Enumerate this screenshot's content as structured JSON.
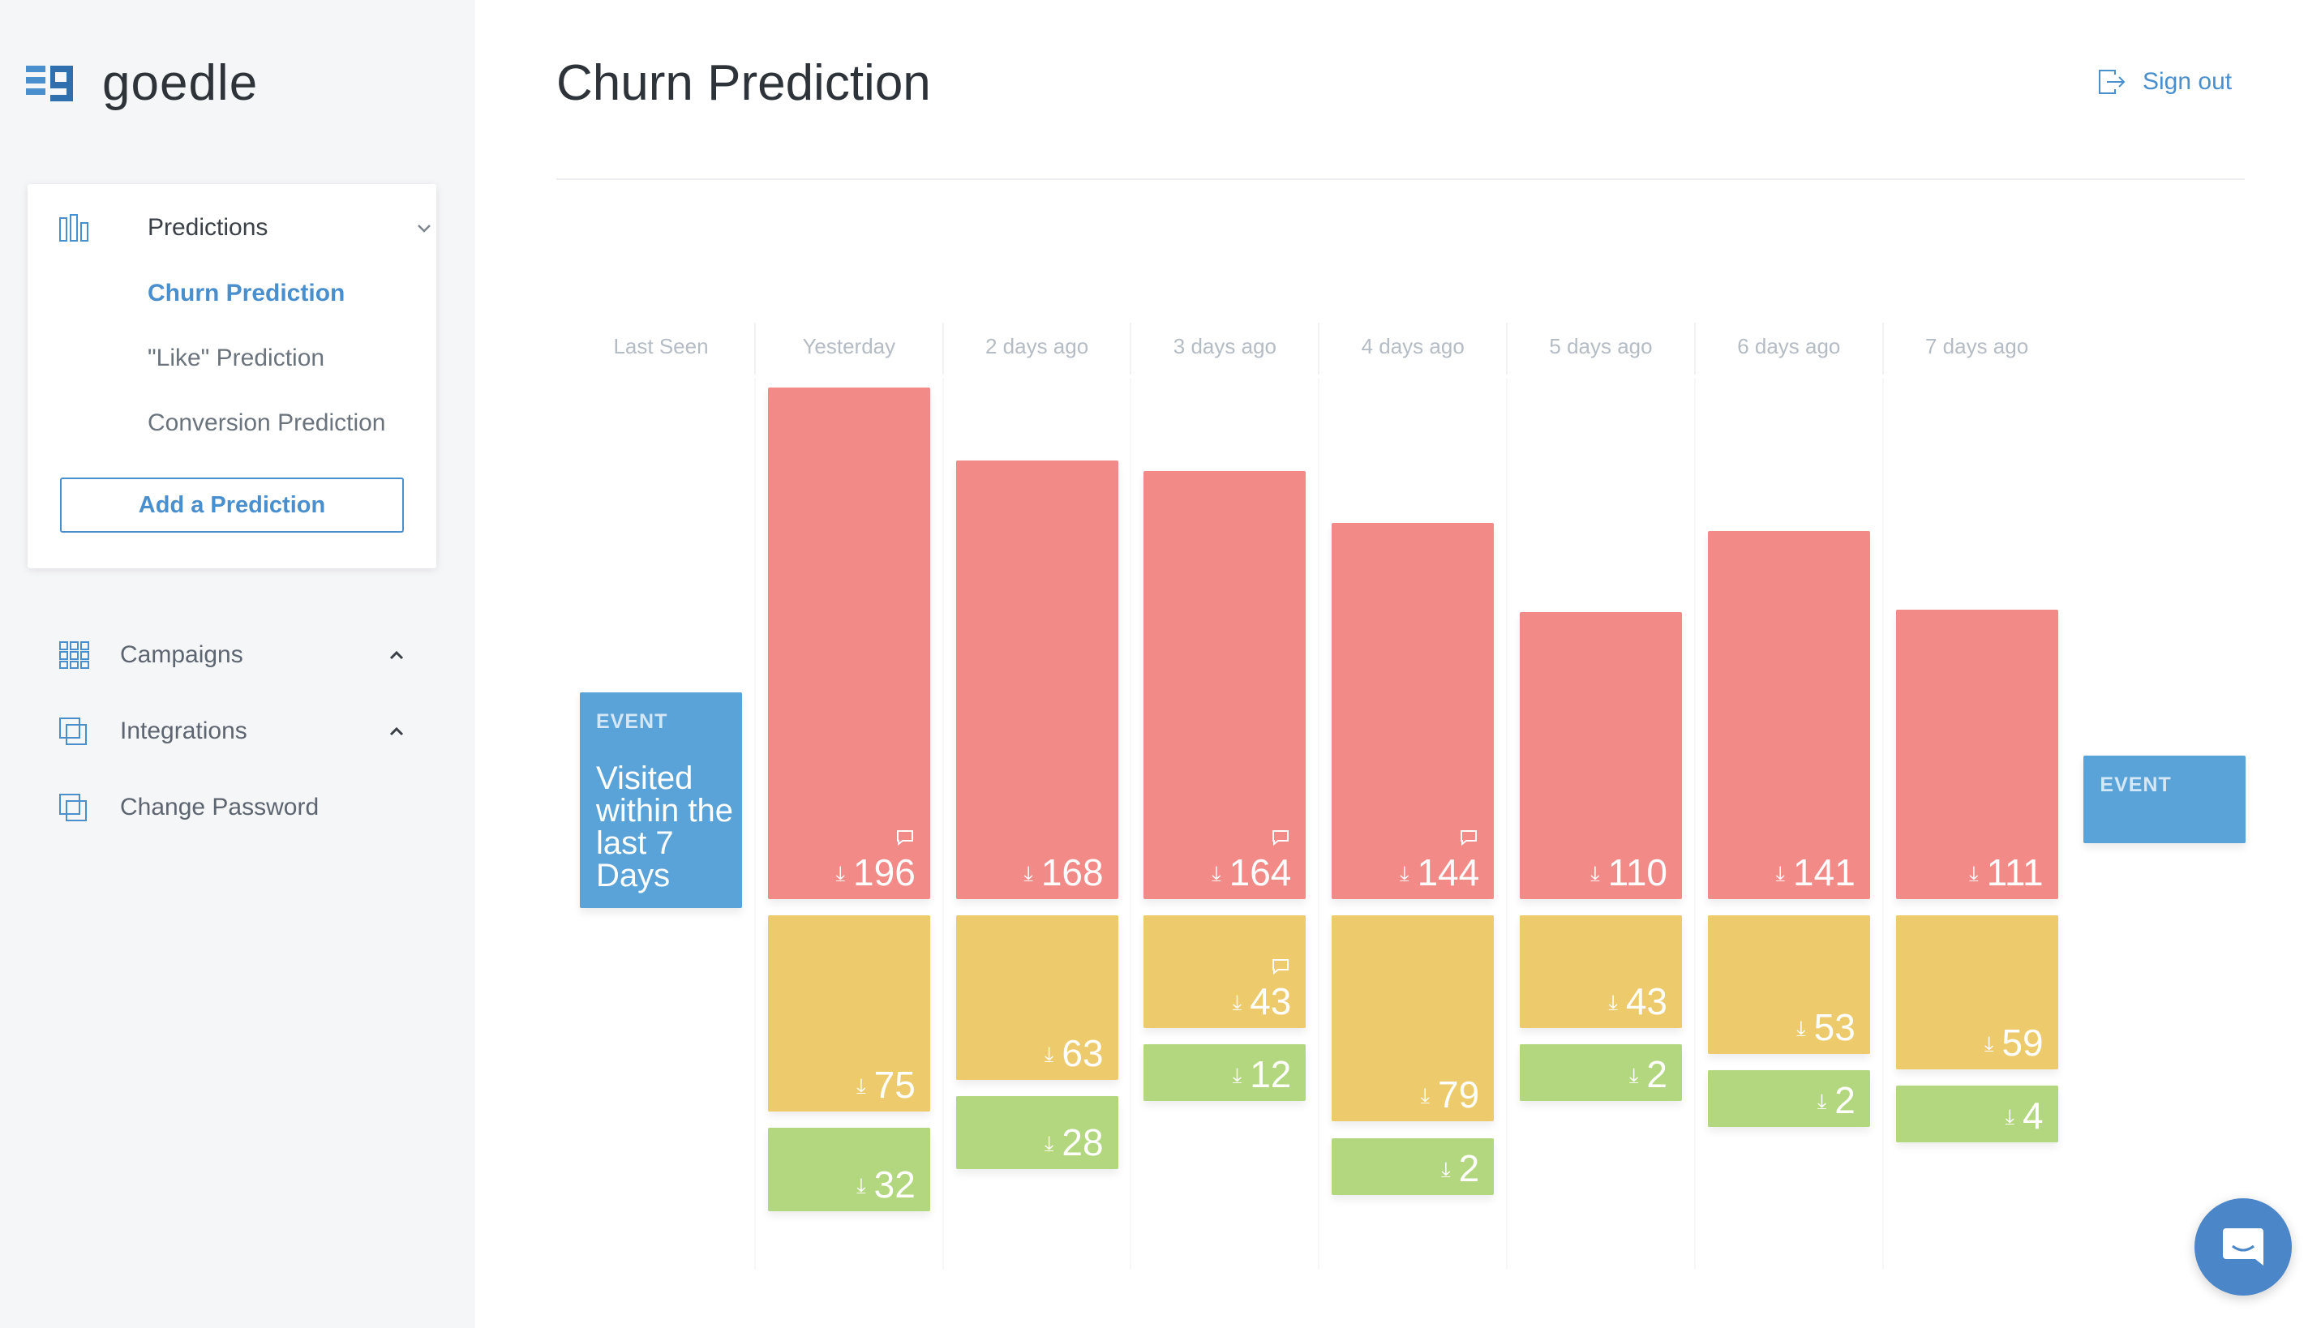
{
  "app": {
    "logo_text": "goedle"
  },
  "sidebar": {
    "predictions": {
      "label": "Predictions",
      "items": [
        {
          "label": "Churn Prediction",
          "active": true
        },
        {
          "label": "\"Like\" Prediction",
          "active": false
        },
        {
          "label": "Conversion Prediction",
          "active": false
        }
      ],
      "add_button": "Add a Prediction"
    },
    "nav": [
      {
        "label": "Campaigns",
        "icon": "grid-icon"
      },
      {
        "label": "Integrations",
        "icon": "layers-icon"
      },
      {
        "label": "Change Password",
        "icon": "layers-icon"
      }
    ]
  },
  "header": {
    "title": "Churn Prediction",
    "signout": "Sign out"
  },
  "colors": {
    "accent": "#4a8fcd",
    "red": "#f28b88",
    "yellow": "#edcb6c",
    "green": "#b3d77f",
    "event": "#5aa3d9"
  },
  "chart_data": {
    "type": "bar",
    "categories": [
      "Last Seen",
      "Yesterday",
      "2 days ago",
      "3 days ago",
      "4 days ago",
      "5 days ago",
      "6 days ago",
      "7 days ago"
    ],
    "start_event": {
      "tag": "EVENT",
      "label": "Visited within the last 7 Days"
    },
    "end_event": {
      "tag": "EVENT"
    },
    "series": [
      {
        "color": "red",
        "values": [
          null,
          196,
          168,
          164,
          144,
          110,
          141,
          111
        ],
        "comments": [
          false,
          true,
          false,
          true,
          true,
          false,
          false,
          false
        ]
      },
      {
        "color": "yellow",
        "values": [
          null,
          75,
          63,
          43,
          79,
          43,
          53,
          59
        ],
        "comments": [
          false,
          false,
          false,
          true,
          false,
          false,
          false,
          false
        ]
      },
      {
        "color": "green",
        "values": [
          null,
          32,
          28,
          12,
          2,
          2,
          2,
          4
        ],
        "comments": [
          false,
          false,
          false,
          false,
          false,
          false,
          false,
          false
        ]
      }
    ]
  }
}
